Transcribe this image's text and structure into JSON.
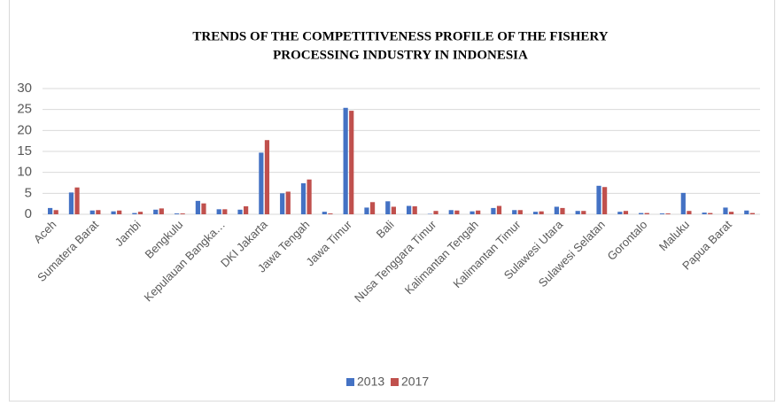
{
  "chart_data": {
    "type": "bar",
    "title": [
      "TRENDS OF THE COMPETITIVENESS PROFILE OF THE FISHERY",
      "PROCESSING INDUSTRY IN INDONESIA"
    ],
    "categories": [
      "Aceh",
      null,
      "Sumatera Barat",
      null,
      "Jambi",
      null,
      "Bengkulu",
      null,
      "Kepulauan Bangka…",
      null,
      "DKI Jakarta",
      null,
      "Jawa Tengah",
      null,
      "Jawa Timur",
      null,
      "Bali",
      null,
      "Nusa Tenggara Timur",
      null,
      "Kalimantan Tengah",
      null,
      "Kalimantan Timur",
      null,
      "Sulawesi Utara",
      null,
      "Sulawesi Selatan",
      null,
      "Gorontalo",
      null,
      "Maluku",
      null,
      "Papua Barat",
      null
    ],
    "series": [
      {
        "name": "2013",
        "color": "#4472c4",
        "values": [
          1.5,
          5.2,
          0.9,
          0.7,
          0.3,
          1.1,
          0.2,
          3.2,
          1.2,
          1.1,
          14.7,
          5.0,
          7.4,
          0.6,
          25.4,
          1.6,
          3.1,
          2.0,
          0.1,
          1.0,
          0.7,
          1.5,
          1.0,
          0.6,
          1.8,
          0.8,
          6.8,
          0.6,
          0.3,
          0.2,
          5.1,
          0.4,
          1.6,
          0.9
        ]
      },
      {
        "name": "2017",
        "color": "#c0504d",
        "values": [
          1.0,
          6.4,
          1.0,
          0.9,
          0.6,
          1.4,
          0.2,
          2.6,
          1.2,
          1.9,
          17.7,
          5.4,
          8.3,
          0.2,
          24.7,
          2.9,
          1.8,
          1.9,
          0.8,
          0.9,
          0.9,
          2.0,
          1.0,
          0.7,
          1.5,
          0.8,
          6.5,
          0.8,
          0.3,
          0.2,
          0.8,
          0.3,
          0.6,
          0.3
        ]
      }
    ],
    "ylim": [
      0,
      30
    ],
    "yticks": [
      0,
      5,
      10,
      15,
      20,
      25,
      30
    ],
    "grid": true,
    "legend": "bottom"
  }
}
